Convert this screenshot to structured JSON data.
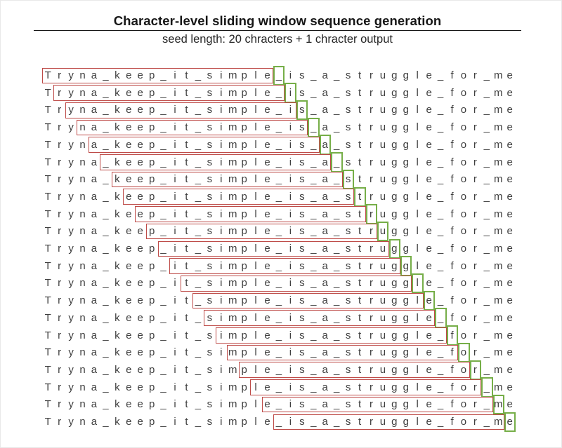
{
  "header": {
    "title": "Character-level sliding window sequence generation",
    "subtitle": "seed length: 20 chracters + 1 chracter output"
  },
  "diagram": {
    "sequence": "Tryna_keep_it_simple_is_a_struggle_for_me",
    "sequence_length": 41,
    "seed_length": 20,
    "output_length": 1,
    "num_windows": 21,
    "colors": {
      "seed_window_box": "#be4b48",
      "output_char_box": "#76ae48",
      "text": "#3f3f3f"
    }
  }
}
